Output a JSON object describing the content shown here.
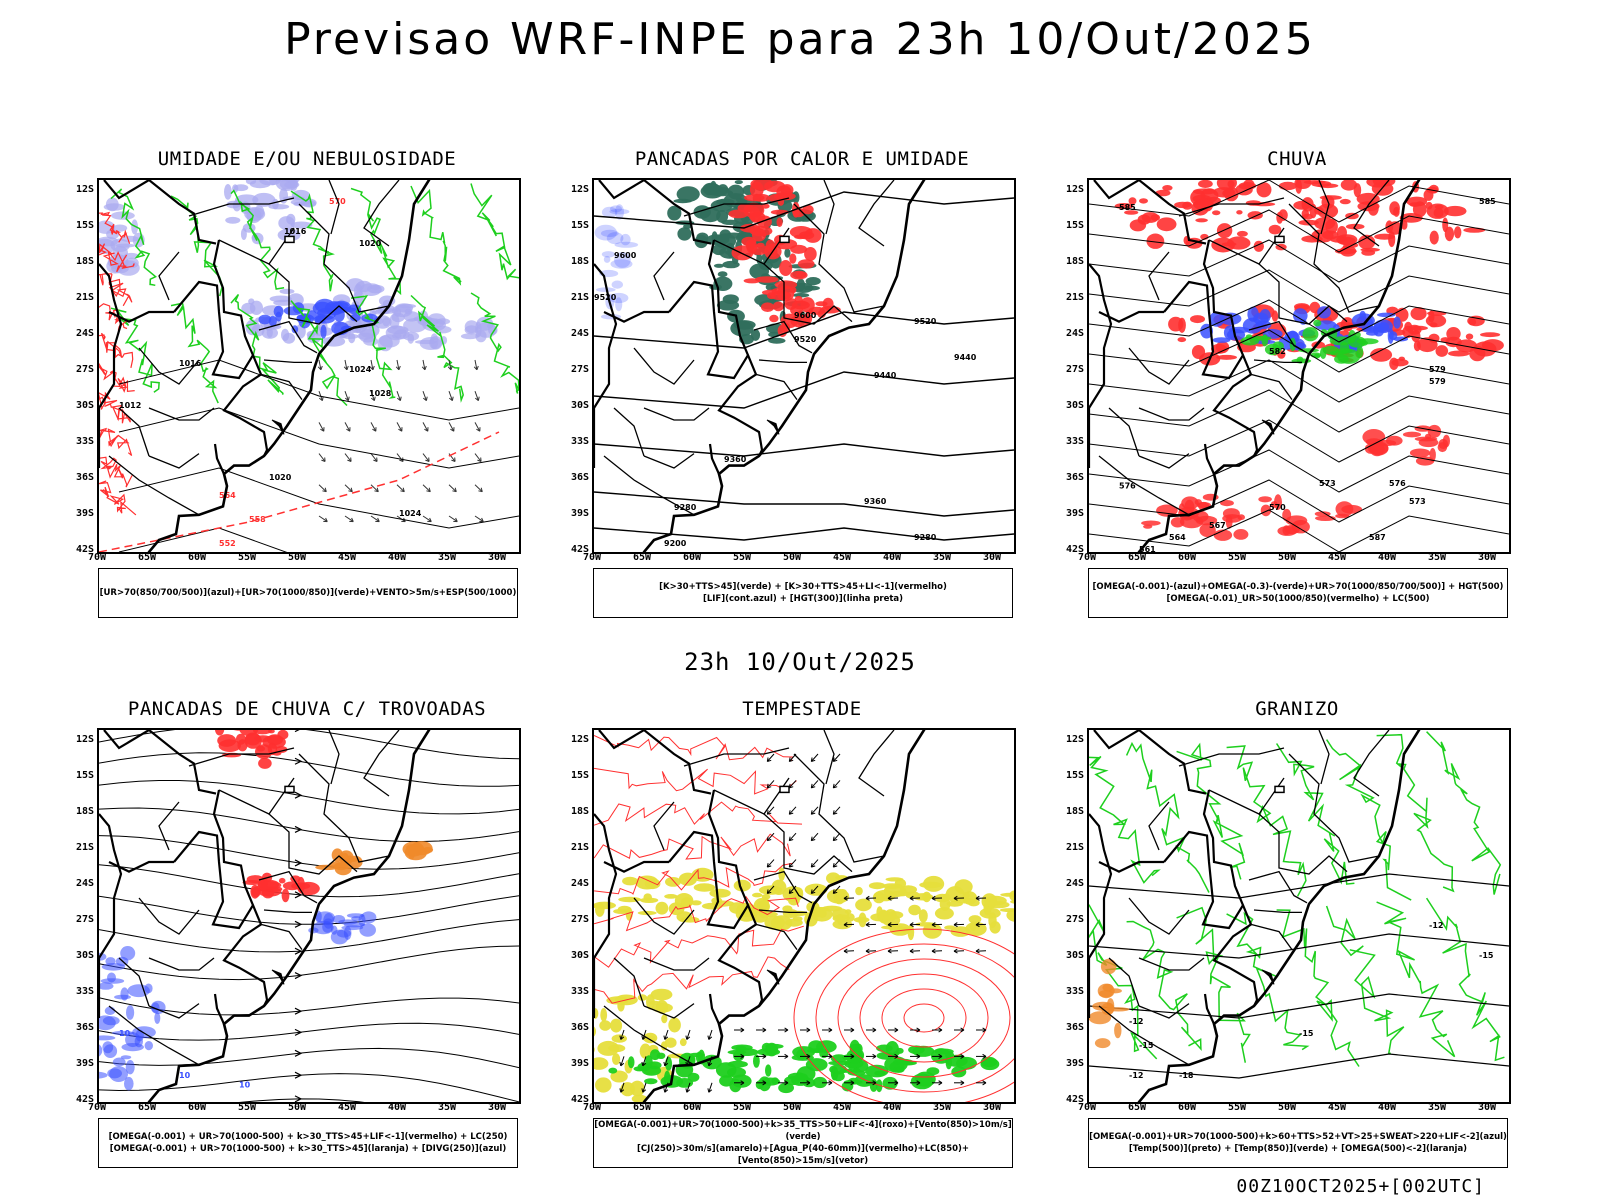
{
  "title": "Previsao WRF-INPE  para 23h 10/Out/2025",
  "mid_time": "23h 10/Out/2025",
  "footer": "00Z10OCT2025+[002UTC]",
  "axes": {
    "lat_labels": [
      "12S",
      "15S",
      "18S",
      "21S",
      "24S",
      "27S",
      "30S",
      "33S",
      "36S",
      "39S",
      "42S"
    ],
    "lon_labels": [
      "70W",
      "65W",
      "60W",
      "55W",
      "50W",
      "45W",
      "40W",
      "35W",
      "30W"
    ]
  },
  "colors": {
    "blue": "#3a50ff",
    "lightblue": "#a9a9f0",
    "green": "#1ecf1e",
    "red": "#ff3030",
    "darkteal": "#2f6e5c",
    "yellow": "#e6de3c",
    "orange": "#f08a2a",
    "black": "#000000"
  },
  "panels": [
    {
      "id": "umidade",
      "title": "UMIDADE E/OU NEBULOSIDADE",
      "legend": [
        "[UR>70(850/700/500)](azul)+[UR>70(1000/850)](verde)+VENTO>5m/s+ESP(500/1000)"
      ],
      "contour_labels": [
        "1016",
        "1020",
        "1024",
        "1028",
        "1012",
        "1016",
        "1020",
        "1024",
        "570",
        "564",
        "558",
        "552"
      ]
    },
    {
      "id": "pancadas_calor",
      "title": "PANCADAS POR CALOR E UMIDADE",
      "legend": [
        "[K>30+TTS>45](verde) + [K>30+TTS>45+LI<-1](vermelho)",
        "[LIF](cont.azul) + [HGT(300)](linha preta)"
      ],
      "contour_labels": [
        "9600",
        "9520",
        "9600",
        "9520",
        "9440",
        "9360",
        "9280",
        "9200",
        "9520",
        "9440",
        "9360",
        "9280"
      ]
    },
    {
      "id": "chuva",
      "title": "CHUVA",
      "legend": [
        "[OMEGA(-0.001)-(azul)+OMEGA(-0.3)-(verde)+UR>70(1000/850/700/500)] + HGT(500)",
        "[OMEGA(-0.01)_UR>50(1000/850)(vermelho) + LC(500)"
      ],
      "contour_labels": [
        "585",
        "585",
        "582",
        "579",
        "576",
        "573",
        "570",
        "567",
        "564",
        "561",
        "587",
        "579",
        "576",
        "573"
      ]
    },
    {
      "id": "trovoadas",
      "title": "PANCADAS DE CHUVA C/ TROVOADAS",
      "legend": [
        "[OMEGA(-0.001) + UR>70(1000-500) + k>30_TTS>45+LIF<-1](vermelho) + LC(250)",
        "[OMEGA(-0.001) + UR>70(1000-500) + k>30_TTS>45](laranja) + [DIVG(250)](azul)"
      ],
      "contour_labels": [
        "10",
        "10",
        "10"
      ]
    },
    {
      "id": "tempestade",
      "title": "TEMPESTADE",
      "legend": [
        "[OMEGA(-0.001)+UR>70(1000-500)+k>35_TTS>50+LIF<-4](roxo)+[Vento(850)>10m/s](verde)",
        "[CJ(250)>30m/s](amarelo)+[Agua_P(40-60mm)](vermelho)+LC(850)+[Vento(850)>15m/s](vetor)"
      ],
      "contour_labels": []
    },
    {
      "id": "granizo",
      "title": "GRANIZO",
      "legend": [
        "[OMEGA(-0.001)+UR>70(1000-500)+k>60+TTS>52+VT>25+SWEAT>220+LIF<-2](azul)",
        "[Temp(500)](preto) + [Temp(850)](verde) + [OMEGA(500)<-2](laranja)"
      ],
      "contour_labels": [
        "-12",
        "-12",
        "-15",
        "-15",
        "-18",
        "-12",
        "-15"
      ]
    }
  ]
}
